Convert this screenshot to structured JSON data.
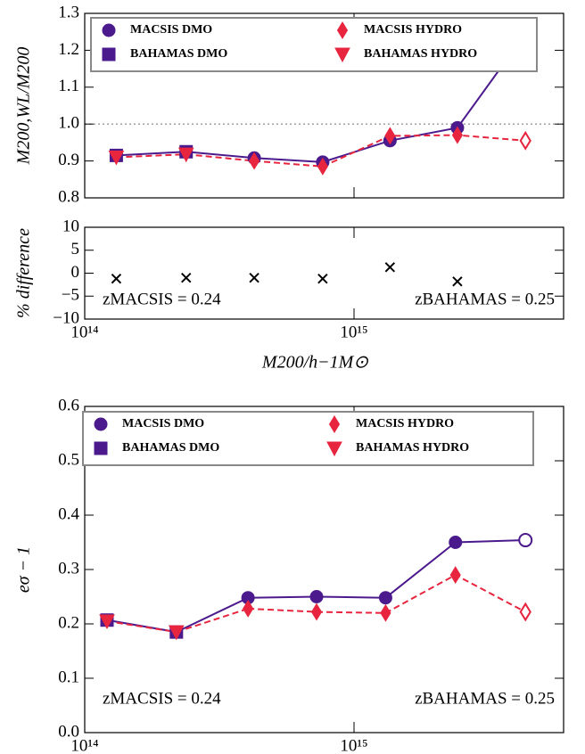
{
  "chart_data": [
    {
      "type": "line",
      "ylabel": "M200,WL/M200",
      "xscale": "log",
      "xlim": [
        100000000000000.0,
        6000000000000000.0
      ],
      "xticks": [
        {
          "value": 100000000000000.0,
          "label": "10¹⁴"
        },
        {
          "value": 1000000000000000.0,
          "label": "10¹⁵"
        }
      ],
      "xtick_labels": false,
      "ylim": [
        0.8,
        1.3
      ],
      "yticks": [
        0.8,
        0.9,
        {
          "value": 1,
          "label": "1.0"
        },
        1.1,
        1.2,
        1.3
      ],
      "reference_line": 1,
      "legend": "upper left",
      "joins": [
        [
          1,
          0
        ],
        [
          3,
          2
        ]
      ],
      "series": [
        {
          "name": "MACSIS DMO",
          "color": "#4b1a8c",
          "marker": "circle",
          "linestyle": "solid",
          "x": [
            426000000000000.0,
            765000000000000.0,
            1360000000000000.0,
            2420000000000000.0,
            4330000000000000.0
          ],
          "values": [
            0.908,
            0.897,
            0.955,
            0.99,
            1.245
          ],
          "hollow": [
            4
          ]
        },
        {
          "name": "BAHAMAS DMO",
          "color": "#4b1a8c",
          "marker": "square",
          "linestyle": "solid",
          "x": [
            131000000000000.0,
            238000000000000.0
          ],
          "values": [
            0.915,
            0.925
          ]
        },
        {
          "name": "MACSIS HYDRO",
          "color": "#e8253f",
          "marker": "diamond",
          "linestyle": "dashed",
          "x": [
            426000000000000.0,
            765000000000000.0,
            1360000000000000.0,
            2420000000000000.0,
            4330000000000000.0
          ],
          "values": [
            0.9,
            0.885,
            0.968,
            0.97,
            0.955
          ],
          "hollow": [
            4
          ]
        },
        {
          "name": "BAHAMAS HYDRO",
          "color": "#e8253f",
          "marker": "triangle-down",
          "linestyle": "dashed",
          "x": [
            131000000000000.0,
            238000000000000.0
          ],
          "values": [
            0.91,
            0.918
          ]
        }
      ]
    },
    {
      "type": "scatter",
      "ylabel": "% difference",
      "xlabel": "M200/h−1M⊙",
      "xscale": "log",
      "xlim": [
        100000000000000.0,
        6000000000000000.0
      ],
      "xticks": [
        {
          "value": 100000000000000.0,
          "label": "10¹⁴"
        },
        {
          "value": 1000000000000000.0,
          "label": "10¹⁵"
        }
      ],
      "ylim": [
        -10,
        10
      ],
      "yticks": [
        {
          "value": -10,
          "label": "−10"
        },
        {
          "value": -5,
          "label": "−5"
        },
        0,
        5,
        10
      ],
      "annotations": [
        {
          "text": "zMACSIS = 0.24",
          "loc": "lower left"
        },
        {
          "text": "zBAHAMAS = 0.25",
          "loc": "lower right"
        }
      ],
      "series": [
        {
          "color": "#000000",
          "marker": "x",
          "x": [
            131000000000000.0,
            238000000000000.0,
            426000000000000.0,
            765000000000000.0,
            1360000000000000.0,
            2420000000000000.0
          ],
          "values": [
            -1.2,
            -1.0,
            -1.0,
            -1.2,
            1.3,
            -1.8
          ]
        }
      ]
    },
    {
      "type": "line",
      "ylabel": "eσ − 1",
      "xscale": "log",
      "xlim": [
        100000000000000.0,
        6000000000000000.0
      ],
      "xticks": [
        {
          "value": 100000000000000.0,
          "label": "10¹⁴"
        },
        {
          "value": 1000000000000000.0,
          "label": "10¹⁵"
        }
      ],
      "ylim": [
        0,
        0.6
      ],
      "yticks": [
        {
          "value": 0,
          "label": "0.0"
        },
        0.1,
        0.2,
        0.3,
        0.4,
        0.5,
        0.6
      ],
      "legend": "upper left",
      "joins": [
        [
          1,
          0
        ],
        [
          3,
          2
        ]
      ],
      "annotations": [
        {
          "text": "zMACSIS = 0.24",
          "loc": "lower left"
        },
        {
          "text": "zBAHAMAS = 0.25",
          "loc": "lower right"
        }
      ],
      "series": [
        {
          "name": "MACSIS DMO",
          "color": "#4b1a8c",
          "marker": "circle",
          "linestyle": "solid",
          "x": [
            404000000000000.0,
            726000000000000.0,
            1310000000000000.0,
            2380000000000000.0,
            4330000000000000.0
          ],
          "values": [
            0.248,
            0.25,
            0.248,
            0.35,
            0.354
          ],
          "hollow": [
            4
          ]
        },
        {
          "name": "BAHAMAS DMO",
          "color": "#4b1a8c",
          "marker": "square",
          "linestyle": "solid",
          "x": [
            121000000000000.0,
            219000000000000.0
          ],
          "values": [
            0.207,
            0.185
          ]
        },
        {
          "name": "MACSIS HYDRO",
          "color": "#e8253f",
          "marker": "diamond",
          "linestyle": "dashed",
          "x": [
            404000000000000.0,
            726000000000000.0,
            1310000000000000.0,
            2380000000000000.0,
            4330000000000000.0
          ],
          "values": [
            0.228,
            0.222,
            0.22,
            0.29,
            0.222
          ],
          "hollow": [
            4
          ]
        },
        {
          "name": "BAHAMAS HYDRO",
          "color": "#e8253f",
          "marker": "triangle-down",
          "linestyle": "dashed",
          "x": [
            121000000000000.0,
            219000000000000.0
          ],
          "values": [
            0.205,
            0.185
          ]
        }
      ]
    }
  ]
}
